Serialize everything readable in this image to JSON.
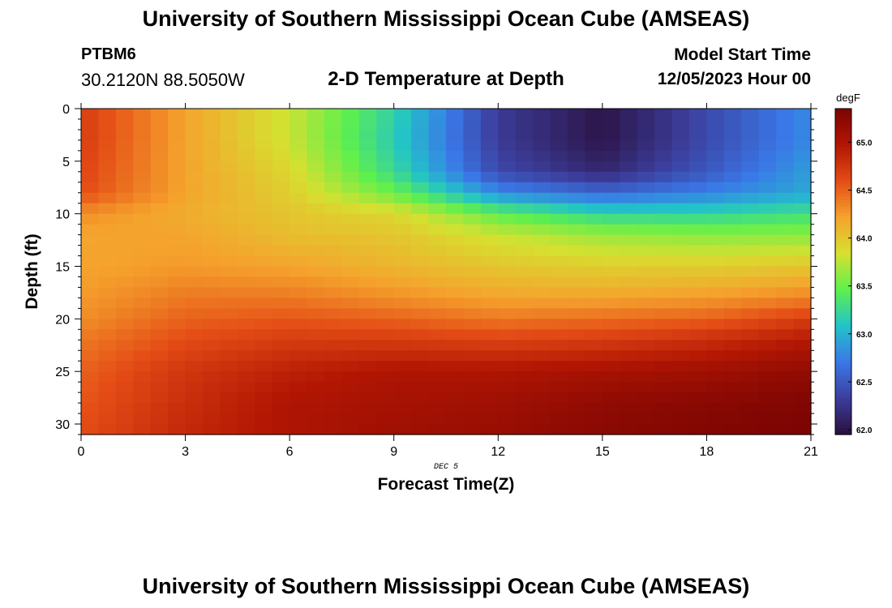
{
  "header": {
    "title": "University of Southern Mississippi Ocean Cube (AMSEAS)",
    "station": "PTBM6",
    "coords": "30.2120N  88.5050W",
    "subtitle": "2-D Temperature at Depth",
    "model_label": "Model Start Time",
    "model_start": "12/05/2023 Hour 00"
  },
  "footer": {
    "title": "University of Southern Mississippi Ocean Cube (AMSEAS)"
  },
  "chart_data": {
    "type": "heatmap",
    "title": "2-D Temperature at Depth",
    "xlabel": "Forecast Time(Z)",
    "ylabel": "Depth (ft)",
    "date_label": "DEC 5",
    "x_range": [
      0,
      21
    ],
    "x_ticks": [
      0,
      3,
      6,
      9,
      12,
      15,
      18,
      21
    ],
    "y_range": [
      0,
      31
    ],
    "y_ticks": [
      0,
      5,
      10,
      15,
      20,
      25,
      30
    ],
    "y_inverted": true,
    "colorbar": {
      "unit": "degF",
      "range": [
        61.95,
        65.35
      ],
      "ticks": [
        62.0,
        62.5,
        63.0,
        63.5,
        64.0,
        64.5,
        65.0
      ],
      "tick_labels": [
        "62.0",
        "62.5",
        "63.0",
        "63.5",
        "64.0",
        "64.5",
        "65.0"
      ]
    },
    "profile_depths_ft": [
      0,
      3,
      6,
      8,
      10,
      12,
      15,
      18,
      20,
      22,
      25,
      28,
      31
    ],
    "profile_times_h": [
      0,
      3,
      6,
      9,
      12,
      15,
      18,
      21
    ],
    "values_degF": [
      [
        64.7,
        64.2,
        63.8,
        63.2,
        62.3,
        62.0,
        62.4,
        62.8
      ],
      [
        64.7,
        64.2,
        63.8,
        63.15,
        62.3,
        62.0,
        62.4,
        62.8
      ],
      [
        64.65,
        64.2,
        63.9,
        63.25,
        62.4,
        62.15,
        62.5,
        62.9
      ],
      [
        64.6,
        64.2,
        63.95,
        63.5,
        62.8,
        62.6,
        62.75,
        62.95
      ],
      [
        64.3,
        64.15,
        64.0,
        63.9,
        63.45,
        63.2,
        63.2,
        63.3
      ],
      [
        64.2,
        64.2,
        64.05,
        64.0,
        63.8,
        63.65,
        63.6,
        63.6
      ],
      [
        64.2,
        64.25,
        64.2,
        64.1,
        64.0,
        63.95,
        63.95,
        64.0
      ],
      [
        64.25,
        64.4,
        64.4,
        64.3,
        64.2,
        64.2,
        64.25,
        64.35
      ],
      [
        64.3,
        64.5,
        64.55,
        64.5,
        64.4,
        64.45,
        64.5,
        64.7
      ],
      [
        64.4,
        64.6,
        64.7,
        64.7,
        64.65,
        64.7,
        64.8,
        64.95
      ],
      [
        64.5,
        64.75,
        64.9,
        65.0,
        65.0,
        65.05,
        65.1,
        65.2
      ],
      [
        64.55,
        64.8,
        65.0,
        65.05,
        65.1,
        65.2,
        65.25,
        65.3
      ],
      [
        64.6,
        64.85,
        65.0,
        65.1,
        65.15,
        65.25,
        65.3,
        65.35
      ]
    ],
    "colors": {
      "frame": "#000000",
      "stops": [
        "#2a0f3d",
        "#3c3e9c",
        "#3a78e8",
        "#22c3c9",
        "#5ef04d",
        "#d6e030",
        "#f5a22d",
        "#e44c16",
        "#b21603",
        "#7a0403"
      ]
    }
  }
}
